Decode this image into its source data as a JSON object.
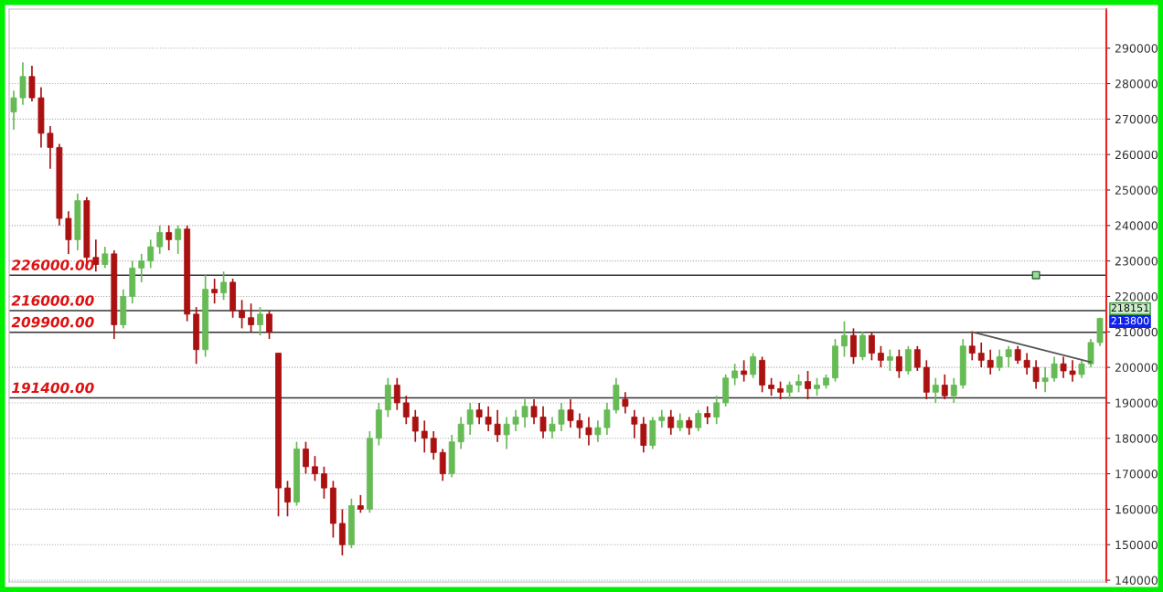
{
  "chart_data": {
    "type": "candlestick",
    "categories": [
      null,
      null,
      null,
      null,
      null,
      null,
      null,
      null,
      null,
      null,
      null,
      null,
      null,
      null,
      null,
      null,
      null,
      null,
      null,
      null,
      null,
      null,
      null,
      null,
      null,
      null,
      null,
      null,
      null,
      null,
      null,
      null,
      null,
      null,
      null,
      null,
      null,
      null,
      null,
      null,
      null,
      null,
      null,
      null,
      null,
      null,
      null,
      null,
      null,
      null,
      null,
      null,
      null,
      null,
      null,
      null,
      null,
      null,
      null,
      null,
      null,
      null,
      null,
      null,
      null,
      null,
      null,
      null,
      null,
      null,
      null,
      null,
      null,
      null,
      null,
      null,
      null,
      null,
      null,
      null,
      null,
      null,
      null,
      null,
      null,
      null,
      null,
      null,
      null,
      null,
      null,
      null,
      null,
      null,
      null,
      null,
      null,
      null,
      null,
      null,
      null,
      null,
      null,
      null,
      null,
      null,
      null,
      null,
      null,
      null,
      null,
      null,
      null,
      null,
      null,
      null,
      null,
      null,
      null,
      null
    ],
    "ohlc": [
      [
        272000,
        278000,
        267000,
        276000
      ],
      [
        276000,
        286000,
        274000,
        282000
      ],
      [
        282000,
        285000,
        275000,
        276000
      ],
      [
        276000,
        279000,
        262000,
        266000
      ],
      [
        266000,
        268000,
        256000,
        262000
      ],
      [
        262000,
        263000,
        240000,
        242000
      ],
      [
        242000,
        244000,
        232000,
        236000
      ],
      [
        236000,
        249000,
        233000,
        247000
      ],
      [
        247000,
        248000,
        229000,
        231000
      ],
      [
        231000,
        236000,
        227000,
        229000
      ],
      [
        229000,
        234000,
        228000,
        232000
      ],
      [
        232000,
        233000,
        208000,
        212000
      ],
      [
        212000,
        222000,
        211000,
        220000
      ],
      [
        220000,
        230000,
        218000,
        228000
      ],
      [
        228000,
        232000,
        224000,
        230000
      ],
      [
        230000,
        236000,
        228000,
        234000
      ],
      [
        234000,
        240000,
        232000,
        238000
      ],
      [
        238000,
        240000,
        233000,
        236000
      ],
      [
        236000,
        240000,
        232000,
        239000
      ],
      [
        239000,
        240000,
        213000,
        215000
      ],
      [
        215000,
        217000,
        201000,
        205000
      ],
      [
        205000,
        226000,
        203000,
        222000
      ],
      [
        222000,
        225000,
        218000,
        221000
      ],
      [
        221000,
        227000,
        219000,
        224000
      ],
      [
        224000,
        225000,
        214000,
        216000
      ],
      [
        216000,
        219000,
        211000,
        214000
      ],
      [
        214000,
        218000,
        210000,
        212000
      ],
      [
        212000,
        217000,
        209000,
        215000
      ],
      [
        215000,
        216000,
        208000,
        210000
      ],
      [
        204000,
        204000,
        158000,
        166000
      ],
      [
        166000,
        168000,
        158000,
        162000
      ],
      [
        162000,
        179000,
        161000,
        177000
      ],
      [
        177000,
        179000,
        170000,
        172000
      ],
      [
        172000,
        175000,
        168000,
        170000
      ],
      [
        170000,
        172000,
        163000,
        166000
      ],
      [
        166000,
        168000,
        152000,
        156000
      ],
      [
        156000,
        160000,
        147000,
        150000
      ],
      [
        150000,
        163000,
        149000,
        161000
      ],
      [
        161000,
        164000,
        159000,
        160000
      ],
      [
        160000,
        182000,
        159000,
        180000
      ],
      [
        180000,
        190000,
        178000,
        188000
      ],
      [
        188000,
        197000,
        186000,
        195000
      ],
      [
        195000,
        197000,
        188000,
        190000
      ],
      [
        190000,
        192000,
        184000,
        186000
      ],
      [
        186000,
        188000,
        179000,
        182000
      ],
      [
        182000,
        185000,
        176000,
        180000
      ],
      [
        180000,
        182000,
        174000,
        176000
      ],
      [
        176000,
        177000,
        168000,
        170000
      ],
      [
        170000,
        181000,
        169000,
        179000
      ],
      [
        179000,
        186000,
        177000,
        184000
      ],
      [
        184000,
        190000,
        181000,
        188000
      ],
      [
        188000,
        190000,
        184000,
        186000
      ],
      [
        186000,
        189000,
        182000,
        184000
      ],
      [
        184000,
        188000,
        179000,
        181000
      ],
      [
        181000,
        186000,
        177000,
        184000
      ],
      [
        184000,
        188000,
        182000,
        186000
      ],
      [
        186000,
        191000,
        183000,
        189000
      ],
      [
        189000,
        191000,
        184000,
        186000
      ],
      [
        186000,
        189000,
        180000,
        182000
      ],
      [
        182000,
        186000,
        180000,
        184000
      ],
      [
        184000,
        190000,
        182000,
        188000
      ],
      [
        188000,
        191000,
        183000,
        185000
      ],
      [
        185000,
        187000,
        180000,
        183000
      ],
      [
        183000,
        186000,
        178000,
        181000
      ],
      [
        181000,
        185000,
        179000,
        183000
      ],
      [
        183000,
        190000,
        181000,
        188000
      ],
      [
        188000,
        197000,
        187000,
        195000
      ],
      [
        191000,
        193000,
        187000,
        189000
      ],
      [
        186000,
        188000,
        180000,
        184000
      ],
      [
        184000,
        186000,
        176000,
        178000
      ],
      [
        178000,
        186000,
        177000,
        185000
      ],
      [
        185000,
        188000,
        183000,
        186000
      ],
      [
        186000,
        188000,
        181000,
        183000
      ],
      [
        183000,
        187000,
        182000,
        185000
      ],
      [
        185000,
        186000,
        181000,
        183000
      ],
      [
        183000,
        188000,
        182000,
        187000
      ],
      [
        187000,
        189000,
        184000,
        186000
      ],
      [
        186000,
        192000,
        184000,
        190000
      ],
      [
        190000,
        198000,
        189000,
        197000
      ],
      [
        197000,
        201000,
        195000,
        199000
      ],
      [
        199000,
        202000,
        196000,
        198000
      ],
      [
        198000,
        204000,
        197000,
        203000
      ],
      [
        202000,
        203000,
        193000,
        195000
      ],
      [
        195000,
        197000,
        192000,
        194000
      ],
      [
        194000,
        196000,
        191000,
        193000
      ],
      [
        193000,
        196000,
        191000,
        195000
      ],
      [
        195000,
        198000,
        193000,
        196000
      ],
      [
        196000,
        199000,
        191000,
        194000
      ],
      [
        194000,
        197000,
        192000,
        195000
      ],
      [
        195000,
        198000,
        194000,
        197000
      ],
      [
        197000,
        208000,
        196000,
        206000
      ],
      [
        206000,
        213000,
        203000,
        209000
      ],
      [
        209000,
        211000,
        201000,
        203000
      ],
      [
        203000,
        210000,
        202000,
        209000
      ],
      [
        209000,
        210000,
        202000,
        204000
      ],
      [
        204000,
        206000,
        200000,
        202000
      ],
      [
        202000,
        205000,
        199000,
        203000
      ],
      [
        203000,
        205000,
        197000,
        199000
      ],
      [
        199000,
        206000,
        198000,
        205000
      ],
      [
        205000,
        206000,
        199000,
        200000
      ],
      [
        200000,
        202000,
        191000,
        193000
      ],
      [
        193000,
        197000,
        190000,
        195000
      ],
      [
        195000,
        198000,
        191000,
        192000
      ],
      [
        192000,
        197000,
        190000,
        195000
      ],
      [
        195000,
        208000,
        194000,
        206000
      ],
      [
        206000,
        210000,
        202000,
        204000
      ],
      [
        204000,
        207000,
        200000,
        202000
      ],
      [
        202000,
        205000,
        198000,
        200000
      ],
      [
        200000,
        205000,
        199000,
        203000
      ],
      [
        203000,
        206000,
        200000,
        205000
      ],
      [
        205000,
        206000,
        201000,
        202000
      ],
      [
        202000,
        204000,
        198000,
        200000
      ],
      [
        200000,
        202000,
        194000,
        196000
      ],
      [
        196000,
        200000,
        193000,
        197000
      ],
      [
        197000,
        203000,
        196000,
        201000
      ],
      [
        201000,
        203000,
        197000,
        199000
      ],
      [
        199000,
        202000,
        196000,
        198000
      ],
      [
        198000,
        202000,
        197000,
        201000
      ],
      [
        201000,
        208000,
        200000,
        207000
      ],
      [
        207000,
        214000,
        206000,
        213800
      ]
    ],
    "series": [
      {
        "type": "line",
        "color": "#555555",
        "values": [
          null,
          null,
          null,
          null,
          null,
          null,
          null,
          null,
          null,
          null,
          null,
          null,
          null,
          null,
          null,
          null,
          null,
          null,
          null,
          null,
          null,
          null,
          null,
          null,
          null,
          null,
          null,
          null,
          null,
          null,
          null,
          null,
          null,
          null,
          null,
          null,
          null,
          null,
          null,
          null,
          null,
          null,
          null,
          null,
          null,
          null,
          null,
          null,
          null,
          null,
          null,
          null,
          null,
          null,
          null,
          null,
          null,
          null,
          null,
          null,
          null,
          null,
          null,
          null,
          null,
          null,
          null,
          null,
          null,
          null,
          null,
          null,
          null,
          null,
          null,
          null,
          null,
          null,
          null,
          null,
          null,
          null,
          null,
          null,
          null,
          null,
          null,
          null,
          null,
          null,
          null,
          null,
          null,
          null,
          null,
          null,
          null,
          null,
          null,
          null,
          null,
          null,
          null,
          null,
          null,
          210000,
          null,
          null,
          null,
          null,
          null,
          null,
          null,
          null,
          null,
          null,
          null,
          null,
          201500,
          null
        ]
      },
      {
        "type": "scatter",
        "color": "#99dd99",
        "values": [
          null,
          null,
          null,
          null,
          null,
          null,
          null,
          null,
          null,
          null,
          null,
          null,
          null,
          null,
          null,
          null,
          null,
          null,
          null,
          null,
          null,
          null,
          null,
          null,
          null,
          null,
          null,
          null,
          null,
          null,
          null,
          null,
          null,
          null,
          null,
          null,
          null,
          null,
          null,
          null,
          null,
          null,
          null,
          null,
          null,
          null,
          null,
          null,
          null,
          null,
          null,
          null,
          null,
          null,
          null,
          null,
          null,
          null,
          null,
          null,
          null,
          null,
          null,
          null,
          null,
          null,
          null,
          null,
          null,
          null,
          null,
          null,
          null,
          null,
          null,
          null,
          null,
          null,
          null,
          null,
          null,
          null,
          null,
          null,
          null,
          null,
          null,
          null,
          null,
          null,
          null,
          null,
          null,
          null,
          null,
          null,
          null,
          null,
          null,
          null,
          null,
          null,
          null,
          null,
          null,
          null,
          null,
          null,
          null,
          null,
          null,
          null,
          226000,
          null,
          null,
          null,
          null,
          null,
          null,
          null
        ]
      }
    ],
    "ylim": [
      139500,
      301000
    ],
    "yticks": [
      140000,
      150000,
      160000,
      170000,
      180000,
      190000,
      200000,
      210000,
      220000,
      230000,
      240000,
      250000,
      260000,
      270000,
      280000,
      290000
    ],
    "ref_lines": [
      {
        "axis": "y",
        "value": 226000,
        "label": "226000.00",
        "color": "#333333"
      },
      {
        "axis": "y",
        "value": 216000,
        "label": "216000.00",
        "color": "#333333"
      },
      {
        "axis": "y",
        "value": 209900,
        "label": "209900.00",
        "color": "#333333"
      },
      {
        "axis": "y",
        "value": 191400,
        "label": "191400.00",
        "color": "#333333"
      }
    ],
    "annotations": [
      "218151",
      "213800"
    ],
    "grid": "y"
  }
}
